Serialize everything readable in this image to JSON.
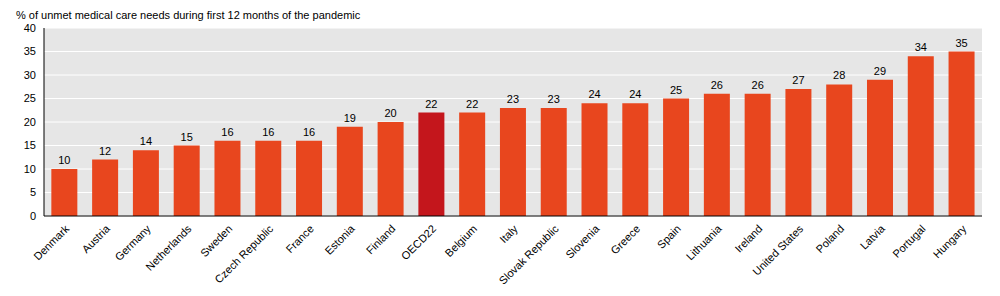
{
  "chart_data": {
    "type": "bar",
    "ylabel": "% of unmet medical care needs during first 12 months of the pandemic",
    "categories": [
      "Denmark",
      "Austria",
      "Germany",
      "Netherlands",
      "Sweden",
      "Czech Republic",
      "France",
      "Estonia",
      "Finland",
      "OECD22",
      "Belgium",
      "Italy",
      "Slovak Republic",
      "Slovenia",
      "Greece",
      "Spain",
      "Lithuania",
      "Ireland",
      "United States",
      "Poland",
      "Latvia",
      "Portugal",
      "Hungary"
    ],
    "values": [
      10,
      12,
      14,
      15,
      16,
      16,
      16,
      19,
      20,
      22,
      22,
      23,
      23,
      24,
      24,
      25,
      26,
      26,
      27,
      28,
      29,
      34,
      35
    ],
    "colors": [
      "#e8461e",
      "#e8461e",
      "#e8461e",
      "#e8461e",
      "#e8461e",
      "#e8461e",
      "#e8461e",
      "#e8461e",
      "#e8461e",
      "#c4161c",
      "#e8461e",
      "#e8461e",
      "#e8461e",
      "#e8461e",
      "#e8461e",
      "#e8461e",
      "#e8461e",
      "#e8461e",
      "#e8461e",
      "#e8461e",
      "#e8461e",
      "#e8461e",
      "#e8461e"
    ],
    "ylim": [
      0,
      40
    ],
    "yticks": [
      0,
      5,
      10,
      15,
      20,
      25,
      30,
      35,
      40
    ],
    "grid": true,
    "data_labels": true
  }
}
